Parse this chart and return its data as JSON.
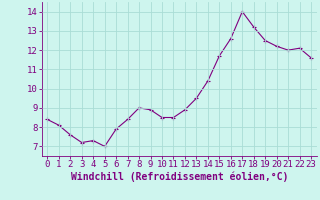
{
  "x": [
    0,
    1,
    2,
    3,
    4,
    5,
    6,
    7,
    8,
    9,
    10,
    11,
    12,
    13,
    14,
    15,
    16,
    17,
    18,
    19,
    20,
    21,
    22,
    23
  ],
  "y": [
    8.4,
    8.1,
    7.6,
    7.2,
    7.3,
    7.0,
    7.9,
    8.4,
    9.0,
    8.9,
    8.5,
    8.5,
    8.9,
    9.5,
    10.4,
    11.7,
    12.6,
    14.0,
    13.2,
    12.5,
    12.2,
    12.0,
    12.1,
    11.6
  ],
  "line_color": "#800080",
  "bg_color": "#cef5ee",
  "grid_color": "#aaddd5",
  "xlabel": "Windchill (Refroidissement éolien,°C)",
  "ylim": [
    6.5,
    14.5
  ],
  "xlim": [
    -0.5,
    23.5
  ],
  "yticks": [
    7,
    8,
    9,
    10,
    11,
    12,
    13,
    14
  ],
  "xticks": [
    0,
    1,
    2,
    3,
    4,
    5,
    6,
    7,
    8,
    9,
    10,
    11,
    12,
    13,
    14,
    15,
    16,
    17,
    18,
    19,
    20,
    21,
    22,
    23
  ],
  "xlabel_color": "#800080",
  "tick_color": "#800080",
  "spine_color": "#800080",
  "xlabel_fontsize": 7,
  "tick_fontsize": 6.5,
  "line_width": 0.8,
  "marker_size": 2.5
}
